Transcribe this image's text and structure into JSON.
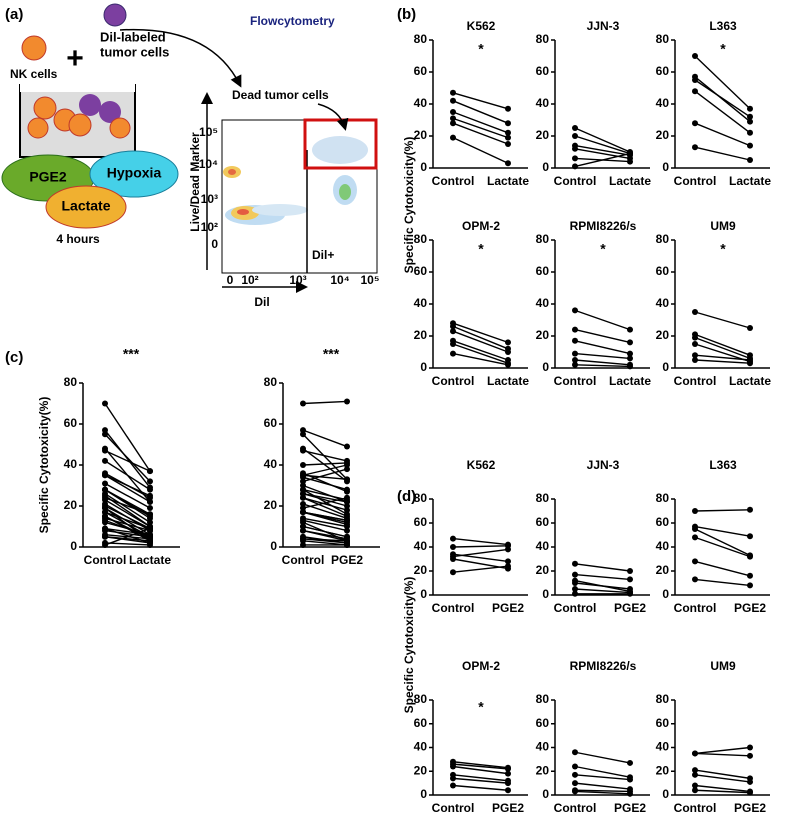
{
  "panel_labels": [
    "(a)",
    "(b)",
    "(c)",
    "(d)"
  ],
  "schematic": {
    "nk": "NK cells",
    "plus": "+",
    "dil": [
      "Dil-labeled",
      "tumor cells"
    ],
    "pge2": "PGE2",
    "hypoxia": "Hypoxia",
    "lactate": "Lactate",
    "time": "4 hours",
    "flow": "Flowcytometry"
  },
  "flow": {
    "dead": "Dead tumor cells",
    "ylabel": "Live/Dead Marker",
    "xlabel": "Dil",
    "gate": "Dil+",
    "yticks": [
      "10⁵",
      "10⁴",
      "10³",
      "10²",
      "0"
    ],
    "xticks": [
      "0",
      "10²",
      "10³",
      "10⁴",
      "10⁵"
    ]
  },
  "ylabels": [
    "Specific Cytotoxicity(%)",
    "Specific Cytotoxicity(%)",
    "Specific Cytotoxicity(%)"
  ],
  "chart_data": [
    {
      "type": "paired",
      "title": "K562",
      "annotation": "*",
      "categories": [
        "Control",
        "Lactate"
      ],
      "ylim": [
        0,
        80
      ],
      "yticks": [
        0,
        20,
        40,
        60,
        80
      ],
      "series": [
        {
          "values": [
            47,
            37
          ]
        },
        {
          "values": [
            42,
            28
          ]
        },
        {
          "values": [
            35,
            22
          ]
        },
        {
          "values": [
            31,
            19
          ]
        },
        {
          "values": [
            28,
            15
          ]
        },
        {
          "values": [
            19,
            3
          ]
        }
      ]
    },
    {
      "type": "paired",
      "title": "JJN-3",
      "categories": [
        "Control",
        "Lactate"
      ],
      "ylim": [
        0,
        80
      ],
      "yticks": [
        0,
        20,
        40,
        60,
        80
      ],
      "series": [
        {
          "values": [
            25,
            10
          ]
        },
        {
          "values": [
            20,
            9
          ]
        },
        {
          "values": [
            14,
            8
          ]
        },
        {
          "values": [
            12,
            6
          ]
        },
        {
          "values": [
            6,
            4
          ]
        },
        {
          "values": [
            1,
            9
          ]
        }
      ]
    },
    {
      "type": "paired",
      "title": "L363",
      "annotation": "*",
      "categories": [
        "Control",
        "Lactate"
      ],
      "ylim": [
        0,
        80
      ],
      "yticks": [
        0,
        20,
        40,
        60,
        80
      ],
      "series": [
        {
          "values": [
            70,
            37
          ]
        },
        {
          "values": [
            57,
            29
          ]
        },
        {
          "values": [
            55,
            32
          ]
        },
        {
          "values": [
            48,
            22
          ]
        },
        {
          "values": [
            28,
            14
          ]
        },
        {
          "values": [
            13,
            5
          ]
        }
      ]
    },
    {
      "type": "paired",
      "title": "OPM-2",
      "annotation": "*",
      "categories": [
        "Control",
        "Lactate"
      ],
      "ylim": [
        0,
        80
      ],
      "yticks": [
        0,
        20,
        40,
        60,
        80
      ],
      "series": [
        {
          "values": [
            28,
            16
          ]
        },
        {
          "values": [
            26,
            12
          ]
        },
        {
          "values": [
            23,
            10
          ]
        },
        {
          "values": [
            17,
            5
          ]
        },
        {
          "values": [
            15,
            3
          ]
        },
        {
          "values": [
            9,
            2
          ]
        }
      ]
    },
    {
      "type": "paired",
      "title": "RPMI8226/s",
      "annotation": "*",
      "categories": [
        "Control",
        "Lactate"
      ],
      "ylim": [
        0,
        80
      ],
      "yticks": [
        0,
        20,
        40,
        60,
        80
      ],
      "series": [
        {
          "values": [
            36,
            24
          ]
        },
        {
          "values": [
            24,
            16
          ]
        },
        {
          "values": [
            17,
            9
          ]
        },
        {
          "values": [
            9,
            6
          ]
        },
        {
          "values": [
            5,
            2
          ]
        },
        {
          "values": [
            2,
            1
          ]
        }
      ]
    },
    {
      "type": "paired",
      "title": "UM9",
      "annotation": "*",
      "categories": [
        "Control",
        "Lactate"
      ],
      "ylim": [
        0,
        80
      ],
      "yticks": [
        0,
        20,
        40,
        60,
        80
      ],
      "series": [
        {
          "values": [
            35,
            25
          ]
        },
        {
          "values": [
            21,
            8
          ]
        },
        {
          "values": [
            19,
            6
          ]
        },
        {
          "values": [
            15,
            4
          ]
        },
        {
          "values": [
            8,
            5
          ]
        },
        {
          "values": [
            5,
            3
          ]
        }
      ]
    },
    {
      "type": "paired",
      "annotation": "***",
      "categories": [
        "Control",
        "Lactate"
      ],
      "ylim": [
        0,
        80
      ],
      "yticks": [
        0,
        20,
        40,
        60,
        80
      ],
      "series": [
        {
          "values": [
            47,
            37
          ]
        },
        {
          "values": [
            42,
            28
          ]
        },
        {
          "values": [
            35,
            22
          ]
        },
        {
          "values": [
            31,
            19
          ]
        },
        {
          "values": [
            28,
            15
          ]
        },
        {
          "values": [
            19,
            3
          ]
        },
        {
          "values": [
            25,
            10
          ]
        },
        {
          "values": [
            20,
            9
          ]
        },
        {
          "values": [
            14,
            8
          ]
        },
        {
          "values": [
            12,
            6
          ]
        },
        {
          "values": [
            6,
            4
          ]
        },
        {
          "values": [
            1,
            9
          ]
        },
        {
          "values": [
            70,
            37
          ]
        },
        {
          "values": [
            57,
            29
          ]
        },
        {
          "values": [
            55,
            32
          ]
        },
        {
          "values": [
            48,
            22
          ]
        },
        {
          "values": [
            28,
            14
          ]
        },
        {
          "values": [
            13,
            5
          ]
        },
        {
          "values": [
            28,
            16
          ]
        },
        {
          "values": [
            26,
            12
          ]
        },
        {
          "values": [
            23,
            10
          ]
        },
        {
          "values": [
            17,
            5
          ]
        },
        {
          "values": [
            15,
            3
          ]
        },
        {
          "values": [
            9,
            2
          ]
        },
        {
          "values": [
            36,
            24
          ]
        },
        {
          "values": [
            24,
            16
          ]
        },
        {
          "values": [
            17,
            9
          ]
        },
        {
          "values": [
            9,
            6
          ]
        },
        {
          "values": [
            5,
            2
          ]
        },
        {
          "values": [
            2,
            1
          ]
        },
        {
          "values": [
            35,
            25
          ]
        },
        {
          "values": [
            21,
            8
          ]
        },
        {
          "values": [
            19,
            6
          ]
        },
        {
          "values": [
            15,
            4
          ]
        },
        {
          "values": [
            8,
            5
          ]
        },
        {
          "values": [
            5,
            3
          ]
        }
      ]
    },
    {
      "type": "paired",
      "annotation": "***",
      "categories": [
        "Control",
        "PGE2"
      ],
      "ylim": [
        0,
        80
      ],
      "yticks": [
        0,
        20,
        40,
        60,
        80
      ],
      "series": [
        {
          "values": [
            47,
            42
          ]
        },
        {
          "values": [
            40,
            41
          ]
        },
        {
          "values": [
            34,
            28
          ]
        },
        {
          "values": [
            32,
            38
          ]
        },
        {
          "values": [
            30,
            22
          ]
        },
        {
          "values": [
            19,
            24
          ]
        },
        {
          "values": [
            26,
            20
          ]
        },
        {
          "values": [
            17,
            13
          ]
        },
        {
          "values": [
            12,
            3
          ]
        },
        {
          "values": [
            10,
            5
          ]
        },
        {
          "values": [
            5,
            2
          ]
        },
        {
          "values": [
            1,
            1
          ]
        },
        {
          "values": [
            70,
            71
          ]
        },
        {
          "values": [
            57,
            49
          ]
        },
        {
          "values": [
            55,
            33
          ]
        },
        {
          "values": [
            48,
            32
          ]
        },
        {
          "values": [
            28,
            16
          ]
        },
        {
          "values": [
            13,
            8
          ]
        },
        {
          "values": [
            28,
            23
          ]
        },
        {
          "values": [
            26,
            22
          ]
        },
        {
          "values": [
            24,
            18
          ]
        },
        {
          "values": [
            17,
            12
          ]
        },
        {
          "values": [
            14,
            10
          ]
        },
        {
          "values": [
            8,
            4
          ]
        },
        {
          "values": [
            36,
            27
          ]
        },
        {
          "values": [
            24,
            15
          ]
        },
        {
          "values": [
            17,
            13
          ]
        },
        {
          "values": [
            10,
            5
          ]
        },
        {
          "values": [
            4,
            3
          ]
        },
        {
          "values": [
            3,
            1
          ]
        },
        {
          "values": [
            35,
            40
          ]
        },
        {
          "values": [
            35,
            33
          ]
        },
        {
          "values": [
            21,
            14
          ]
        },
        {
          "values": [
            17,
            11
          ]
        },
        {
          "values": [
            8,
            3
          ]
        },
        {
          "values": [
            4,
            2
          ]
        }
      ]
    },
    {
      "type": "paired",
      "title": "K562",
      "categories": [
        "Control",
        "PGE2"
      ],
      "ylim": [
        0,
        80
      ],
      "yticks": [
        0,
        20,
        40,
        60,
        80
      ],
      "series": [
        {
          "values": [
            47,
            42
          ]
        },
        {
          "values": [
            40,
            41
          ]
        },
        {
          "values": [
            34,
            28
          ]
        },
        {
          "values": [
            32,
            38
          ]
        },
        {
          "values": [
            30,
            22
          ]
        },
        {
          "values": [
            19,
            24
          ]
        }
      ]
    },
    {
      "type": "paired",
      "title": "JJN-3",
      "categories": [
        "Control",
        "PGE2"
      ],
      "ylim": [
        0,
        80
      ],
      "yticks": [
        0,
        20,
        40,
        60,
        80
      ],
      "series": [
        {
          "values": [
            26,
            20
          ]
        },
        {
          "values": [
            17,
            13
          ]
        },
        {
          "values": [
            12,
            3
          ]
        },
        {
          "values": [
            10,
            5
          ]
        },
        {
          "values": [
            5,
            2
          ]
        },
        {
          "values": [
            1,
            1
          ]
        }
      ]
    },
    {
      "type": "paired",
      "title": "L363",
      "categories": [
        "Control",
        "PGE2"
      ],
      "ylim": [
        0,
        80
      ],
      "yticks": [
        0,
        20,
        40,
        60,
        80
      ],
      "series": [
        {
          "values": [
            70,
            71
          ]
        },
        {
          "values": [
            57,
            49
          ]
        },
        {
          "values": [
            55,
            33
          ]
        },
        {
          "values": [
            48,
            32
          ]
        },
        {
          "values": [
            28,
            16
          ]
        },
        {
          "values": [
            13,
            8
          ]
        }
      ]
    },
    {
      "type": "paired",
      "title": "OPM-2",
      "annotation": "*",
      "categories": [
        "Control",
        "PGE2"
      ],
      "ylim": [
        0,
        80
      ],
      "yticks": [
        0,
        20,
        40,
        60,
        80
      ],
      "series": [
        {
          "values": [
            28,
            23
          ]
        },
        {
          "values": [
            26,
            22
          ]
        },
        {
          "values": [
            24,
            18
          ]
        },
        {
          "values": [
            17,
            12
          ]
        },
        {
          "values": [
            14,
            10
          ]
        },
        {
          "values": [
            8,
            4
          ]
        }
      ]
    },
    {
      "type": "paired",
      "title": "RPMI8226/s",
      "categories": [
        "Control",
        "PGE2"
      ],
      "ylim": [
        0,
        80
      ],
      "yticks": [
        0,
        20,
        40,
        60,
        80
      ],
      "series": [
        {
          "values": [
            36,
            27
          ]
        },
        {
          "values": [
            24,
            15
          ]
        },
        {
          "values": [
            17,
            13
          ]
        },
        {
          "values": [
            10,
            5
          ]
        },
        {
          "values": [
            4,
            3
          ]
        },
        {
          "values": [
            3,
            1
          ]
        }
      ]
    },
    {
      "type": "paired",
      "title": "UM9",
      "categories": [
        "Control",
        "PGE2"
      ],
      "ylim": [
        0,
        80
      ],
      "yticks": [
        0,
        20,
        40,
        60,
        80
      ],
      "series": [
        {
          "values": [
            35,
            40
          ]
        },
        {
          "values": [
            35,
            33
          ]
        },
        {
          "values": [
            21,
            14
          ]
        },
        {
          "values": [
            17,
            11
          ]
        },
        {
          "values": [
            8,
            3
          ]
        },
        {
          "values": [
            4,
            2
          ]
        }
      ]
    }
  ]
}
